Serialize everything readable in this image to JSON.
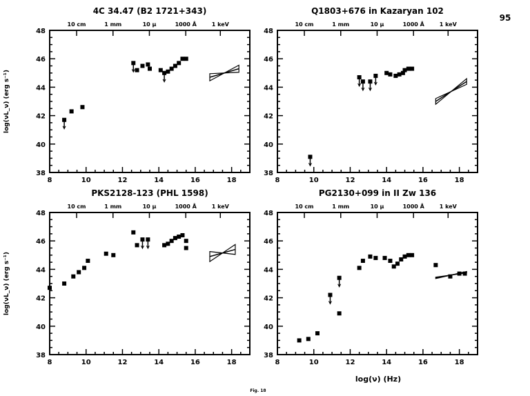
{
  "page_number": "95",
  "figure_caption": "Fig. 18",
  "xlabel": "log(ν) (Hz)",
  "ylabel": "log(νL_ν) (erg s⁻¹)",
  "top_axis_labels": [
    {
      "label": "10 cm",
      "logv": 9.48
    },
    {
      "label": "1 mm",
      "logv": 11.48
    },
    {
      "label": "10 μ",
      "logv": 13.48
    },
    {
      "label": "1000 Å",
      "logv": 15.48
    },
    {
      "label": "1 keV",
      "logv": 17.38
    }
  ],
  "chart_data": [
    {
      "type": "scatter",
      "title": "4C 34.47 (B2 1721+343)",
      "xlim": [
        8,
        19
      ],
      "ylim": [
        38,
        48
      ],
      "xticks": [
        8,
        10,
        12,
        14,
        16,
        18
      ],
      "yticks": [
        38,
        40,
        42,
        44,
        46,
        48
      ],
      "points": [
        [
          8.8,
          41.7,
          1
        ],
        [
          9.2,
          42.3,
          0
        ],
        [
          9.8,
          42.6,
          0
        ],
        [
          12.6,
          45.7,
          1
        ],
        [
          12.8,
          45.2,
          0
        ],
        [
          13.1,
          45.5,
          0
        ],
        [
          13.4,
          45.6,
          0
        ],
        [
          13.5,
          45.3,
          0
        ],
        [
          14.1,
          45.2,
          0
        ],
        [
          14.3,
          45.0,
          1
        ],
        [
          14.5,
          45.1,
          0
        ],
        [
          14.7,
          45.3,
          0
        ],
        [
          14.9,
          45.5,
          0
        ],
        [
          15.1,
          45.7,
          0
        ],
        [
          15.3,
          46.0,
          0
        ],
        [
          15.5,
          46.0,
          0
        ]
      ],
      "xray_bowtie": {
        "x": [
          16.8,
          18.4
        ],
        "y": [
          44.7,
          45.3
        ],
        "spread": 0.25
      }
    },
    {
      "type": "scatter",
      "title": "Q1803+676 in Kazaryan 102",
      "xlim": [
        8,
        19
      ],
      "ylim": [
        38,
        48
      ],
      "xticks": [
        8,
        10,
        12,
        14,
        16,
        18
      ],
      "yticks": [
        38,
        40,
        42,
        44,
        46,
        48
      ],
      "points": [
        [
          9.8,
          39.1,
          1
        ],
        [
          12.5,
          44.7,
          1
        ],
        [
          12.7,
          44.4,
          1
        ],
        [
          13.1,
          44.4,
          1
        ],
        [
          13.4,
          44.8,
          1
        ],
        [
          14.0,
          45.0,
          0
        ],
        [
          14.2,
          44.9,
          0
        ],
        [
          14.5,
          44.8,
          0
        ],
        [
          14.7,
          44.9,
          0
        ],
        [
          14.9,
          45.0,
          0
        ],
        [
          15.0,
          45.2,
          0
        ],
        [
          15.2,
          45.3,
          0
        ],
        [
          15.4,
          45.3,
          0
        ]
      ],
      "xray_bowtie": {
        "x": [
          16.7,
          18.4
        ],
        "y": [
          43.0,
          44.4
        ],
        "spread": 0.2
      }
    },
    {
      "type": "scatter",
      "title": "PKS2128-123 (PHL 1598)",
      "xlim": [
        8,
        19
      ],
      "ylim": [
        38,
        48
      ],
      "xticks": [
        8,
        10,
        12,
        14,
        16,
        18
      ],
      "yticks": [
        38,
        40,
        42,
        44,
        46,
        48
      ],
      "points": [
        [
          8.0,
          42.7,
          0
        ],
        [
          8.8,
          43.0,
          0
        ],
        [
          9.3,
          43.5,
          0
        ],
        [
          9.6,
          43.8,
          0
        ],
        [
          9.9,
          44.1,
          0
        ],
        [
          10.1,
          44.6,
          0
        ],
        [
          11.1,
          45.1,
          0
        ],
        [
          11.5,
          45.0,
          0
        ],
        [
          12.6,
          46.6,
          0
        ],
        [
          12.8,
          45.7,
          0
        ],
        [
          13.1,
          46.1,
          1
        ],
        [
          13.4,
          46.1,
          1
        ],
        [
          14.3,
          45.7,
          0
        ],
        [
          14.5,
          45.8,
          0
        ],
        [
          14.7,
          46.0,
          0
        ],
        [
          14.9,
          46.2,
          0
        ],
        [
          15.1,
          46.3,
          0
        ],
        [
          15.3,
          46.4,
          0
        ],
        [
          15.5,
          46.0,
          0
        ],
        [
          15.5,
          45.5,
          0
        ]
      ],
      "xray_bowtie": {
        "x": [
          16.8,
          18.2
        ],
        "y": [
          44.9,
          45.4
        ],
        "spread": 0.35
      }
    },
    {
      "type": "scatter",
      "title": "PG2130+099 in II Zw 136",
      "xlim": [
        8,
        19
      ],
      "ylim": [
        38,
        48
      ],
      "xticks": [
        8,
        10,
        12,
        14,
        16,
        18
      ],
      "yticks": [
        38,
        40,
        42,
        44,
        46,
        48
      ],
      "points": [
        [
          9.2,
          39.0,
          0
        ],
        [
          9.7,
          39.1,
          0
        ],
        [
          10.2,
          39.5,
          0
        ],
        [
          10.9,
          42.2,
          1
        ],
        [
          11.4,
          43.4,
          1
        ],
        [
          11.4,
          40.9,
          0
        ],
        [
          12.5,
          44.1,
          0
        ],
        [
          12.7,
          44.6,
          0
        ],
        [
          13.1,
          44.9,
          0
        ],
        [
          13.4,
          44.8,
          0
        ],
        [
          13.9,
          44.8,
          0
        ],
        [
          14.2,
          44.6,
          0
        ],
        [
          14.4,
          44.2,
          0
        ],
        [
          14.6,
          44.4,
          0
        ],
        [
          14.8,
          44.7,
          0
        ],
        [
          15.0,
          44.9,
          0
        ],
        [
          15.2,
          45.0,
          0
        ],
        [
          15.4,
          45.0,
          0
        ],
        [
          16.7,
          44.3,
          0
        ],
        [
          17.5,
          43.5,
          0
        ],
        [
          18.0,
          43.7,
          0
        ],
        [
          18.3,
          43.7,
          0
        ]
      ],
      "xray_bowtie": {
        "x": [
          16.7,
          18.4
        ],
        "y": [
          43.4,
          43.8
        ],
        "spread": 0.05
      }
    }
  ]
}
